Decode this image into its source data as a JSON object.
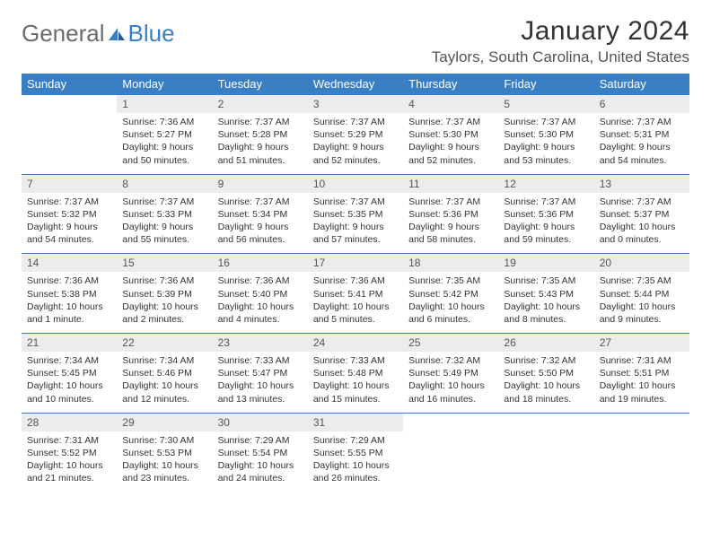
{
  "brand": {
    "part1": "General",
    "part2": "Blue"
  },
  "title": "January 2024",
  "location": "Taylors, South Carolina, United States",
  "colors": {
    "header_bg": "#3a7fc4",
    "header_text": "#ffffff",
    "daynum_bg": "#ececec",
    "daynum_text": "#555555",
    "body_text": "#333333",
    "row_border": "#3a7fc4",
    "page_bg": "#ffffff",
    "logo_gray": "#6b6b6b",
    "logo_blue": "#3a7fc4"
  },
  "weekdays": [
    "Sunday",
    "Monday",
    "Tuesday",
    "Wednesday",
    "Thursday",
    "Friday",
    "Saturday"
  ],
  "layout": {
    "first_weekday_index": 1,
    "days_in_month": 31,
    "rows": 5,
    "cols": 7
  },
  "days": [
    {
      "n": "1",
      "sunrise": "7:36 AM",
      "sunset": "5:27 PM",
      "daylight": "9 hours and 50 minutes."
    },
    {
      "n": "2",
      "sunrise": "7:37 AM",
      "sunset": "5:28 PM",
      "daylight": "9 hours and 51 minutes."
    },
    {
      "n": "3",
      "sunrise": "7:37 AM",
      "sunset": "5:29 PM",
      "daylight": "9 hours and 52 minutes."
    },
    {
      "n": "4",
      "sunrise": "7:37 AM",
      "sunset": "5:30 PM",
      "daylight": "9 hours and 52 minutes."
    },
    {
      "n": "5",
      "sunrise": "7:37 AM",
      "sunset": "5:30 PM",
      "daylight": "9 hours and 53 minutes."
    },
    {
      "n": "6",
      "sunrise": "7:37 AM",
      "sunset": "5:31 PM",
      "daylight": "9 hours and 54 minutes."
    },
    {
      "n": "7",
      "sunrise": "7:37 AM",
      "sunset": "5:32 PM",
      "daylight": "9 hours and 54 minutes."
    },
    {
      "n": "8",
      "sunrise": "7:37 AM",
      "sunset": "5:33 PM",
      "daylight": "9 hours and 55 minutes."
    },
    {
      "n": "9",
      "sunrise": "7:37 AM",
      "sunset": "5:34 PM",
      "daylight": "9 hours and 56 minutes."
    },
    {
      "n": "10",
      "sunrise": "7:37 AM",
      "sunset": "5:35 PM",
      "daylight": "9 hours and 57 minutes."
    },
    {
      "n": "11",
      "sunrise": "7:37 AM",
      "sunset": "5:36 PM",
      "daylight": "9 hours and 58 minutes."
    },
    {
      "n": "12",
      "sunrise": "7:37 AM",
      "sunset": "5:36 PM",
      "daylight": "9 hours and 59 minutes."
    },
    {
      "n": "13",
      "sunrise": "7:37 AM",
      "sunset": "5:37 PM",
      "daylight": "10 hours and 0 minutes."
    },
    {
      "n": "14",
      "sunrise": "7:36 AM",
      "sunset": "5:38 PM",
      "daylight": "10 hours and 1 minute."
    },
    {
      "n": "15",
      "sunrise": "7:36 AM",
      "sunset": "5:39 PM",
      "daylight": "10 hours and 2 minutes."
    },
    {
      "n": "16",
      "sunrise": "7:36 AM",
      "sunset": "5:40 PM",
      "daylight": "10 hours and 4 minutes."
    },
    {
      "n": "17",
      "sunrise": "7:36 AM",
      "sunset": "5:41 PM",
      "daylight": "10 hours and 5 minutes."
    },
    {
      "n": "18",
      "sunrise": "7:35 AM",
      "sunset": "5:42 PM",
      "daylight": "10 hours and 6 minutes."
    },
    {
      "n": "19",
      "sunrise": "7:35 AM",
      "sunset": "5:43 PM",
      "daylight": "10 hours and 8 minutes."
    },
    {
      "n": "20",
      "sunrise": "7:35 AM",
      "sunset": "5:44 PM",
      "daylight": "10 hours and 9 minutes."
    },
    {
      "n": "21",
      "sunrise": "7:34 AM",
      "sunset": "5:45 PM",
      "daylight": "10 hours and 10 minutes."
    },
    {
      "n": "22",
      "sunrise": "7:34 AM",
      "sunset": "5:46 PM",
      "daylight": "10 hours and 12 minutes."
    },
    {
      "n": "23",
      "sunrise": "7:33 AM",
      "sunset": "5:47 PM",
      "daylight": "10 hours and 13 minutes."
    },
    {
      "n": "24",
      "sunrise": "7:33 AM",
      "sunset": "5:48 PM",
      "daylight": "10 hours and 15 minutes."
    },
    {
      "n": "25",
      "sunrise": "7:32 AM",
      "sunset": "5:49 PM",
      "daylight": "10 hours and 16 minutes."
    },
    {
      "n": "26",
      "sunrise": "7:32 AM",
      "sunset": "5:50 PM",
      "daylight": "10 hours and 18 minutes."
    },
    {
      "n": "27",
      "sunrise": "7:31 AM",
      "sunset": "5:51 PM",
      "daylight": "10 hours and 19 minutes."
    },
    {
      "n": "28",
      "sunrise": "7:31 AM",
      "sunset": "5:52 PM",
      "daylight": "10 hours and 21 minutes."
    },
    {
      "n": "29",
      "sunrise": "7:30 AM",
      "sunset": "5:53 PM",
      "daylight": "10 hours and 23 minutes."
    },
    {
      "n": "30",
      "sunrise": "7:29 AM",
      "sunset": "5:54 PM",
      "daylight": "10 hours and 24 minutes."
    },
    {
      "n": "31",
      "sunrise": "7:29 AM",
      "sunset": "5:55 PM",
      "daylight": "10 hours and 26 minutes."
    }
  ],
  "labels": {
    "sunrise": "Sunrise:",
    "sunset": "Sunset:",
    "daylight": "Daylight:"
  },
  "typography": {
    "title_fontsize": 30,
    "location_fontsize": 17,
    "weekday_fontsize": 13,
    "daynum_fontsize": 12,
    "body_fontsize": 10.5,
    "font_family": "Arial"
  }
}
